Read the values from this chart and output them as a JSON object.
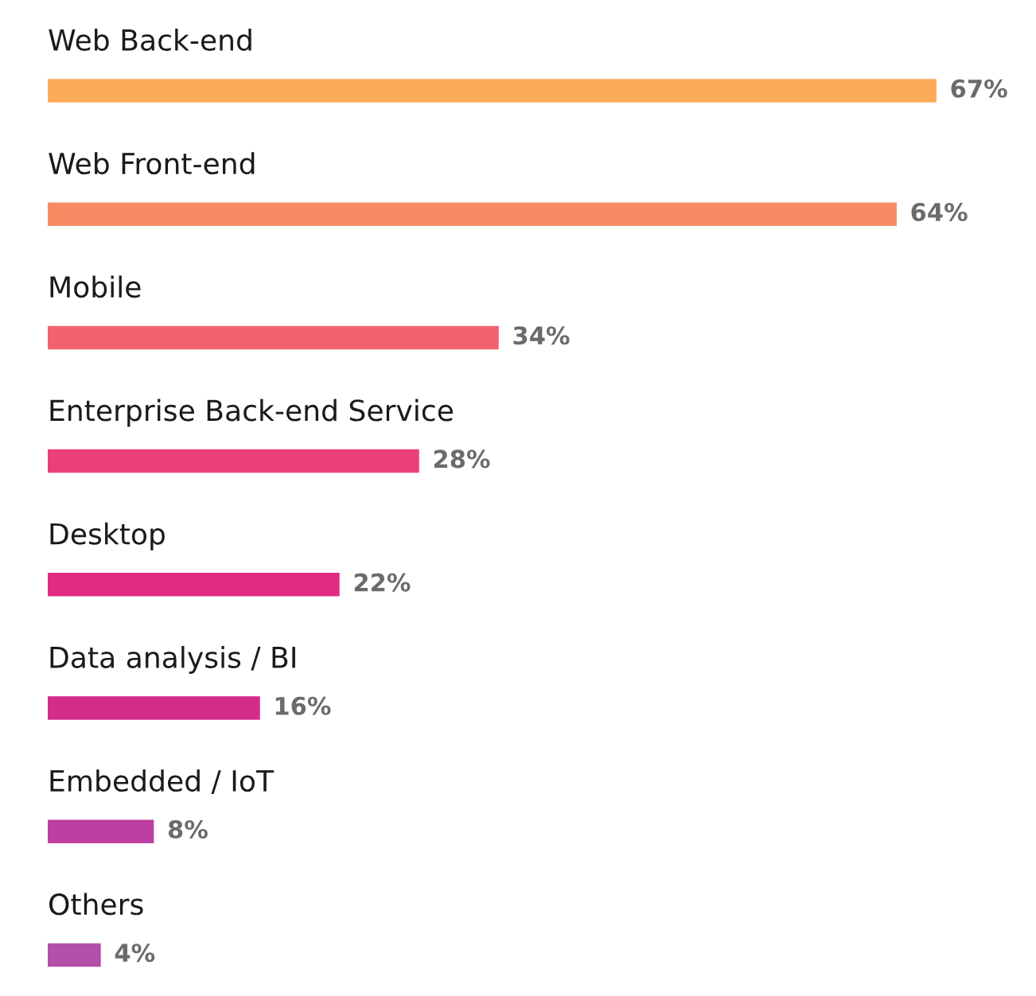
{
  "chart_data": {
    "type": "bar",
    "orientation": "horizontal",
    "tick_labels": false,
    "categories": [
      "Web Back-end",
      "Web Front-end",
      "Mobile",
      "Enterprise Back-end Service",
      "Desktop",
      "Data analysis / BI",
      "Embedded / IoT",
      "Others"
    ],
    "values": [
      67,
      64,
      34,
      28,
      22,
      16,
      8,
      4
    ],
    "colors": [
      "#fcab5b",
      "#f68b63",
      "#f2636f",
      "#ec3f78",
      "#e22a82",
      "#d42b8a",
      "#bd3ea0",
      "#b24fa8"
    ],
    "value_labels": [
      "67%",
      "64%",
      "34%",
      "28%",
      "22%",
      "16%",
      "8%",
      "4%"
    ]
  }
}
